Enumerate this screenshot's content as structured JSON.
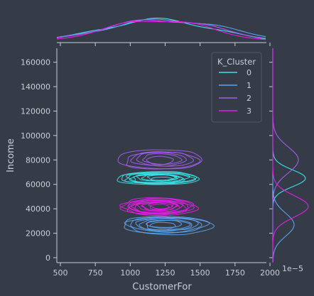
{
  "chart_data": {
    "type": "kde-jointplot",
    "xlabel": "CustomerFor",
    "ylabel": "Income",
    "xlim": [
      500,
      2000
    ],
    "ylim": [
      0,
      172000
    ],
    "xticks": [
      "500",
      "750",
      "1000",
      "1250",
      "1500",
      "1750",
      "2000"
    ],
    "yticks": [
      "0",
      "20000",
      "40000",
      "60000",
      "80000",
      "100000",
      "120000",
      "140000",
      "160000"
    ],
    "xtick_values": [
      500,
      750,
      1000,
      1250,
      1500,
      1750,
      2000
    ],
    "ytick_values": [
      0,
      20000,
      40000,
      60000,
      80000,
      100000,
      120000,
      140000,
      160000
    ],
    "marginal_y_offset_label": "1e−5",
    "legend": {
      "title": "K_Cluster",
      "placement": "top-right",
      "entries": [
        "0",
        "1",
        "2",
        "3"
      ]
    },
    "series": [
      {
        "name": "0",
        "color": "#38e3e6",
        "x_center": 1200,
        "x_spread": 290,
        "y_center": 65000,
        "y_spread": 5500,
        "contour_levels": 10
      },
      {
        "name": "1",
        "color": "#5aa3f0",
        "x_center": 1260,
        "x_spread": 320,
        "y_center": 27000,
        "y_spread": 7500,
        "contour_levels": 8
      },
      {
        "name": "2",
        "color": "#a65cf0",
        "x_center": 1220,
        "x_spread": 300,
        "y_center": 80000,
        "y_spread": 8500,
        "contour_levels": 6
      },
      {
        "name": "3",
        "color": "#e31ee3",
        "x_center": 1200,
        "x_spread": 270,
        "y_center": 42000,
        "y_spread": 7000,
        "contour_levels": 12
      }
    ]
  }
}
